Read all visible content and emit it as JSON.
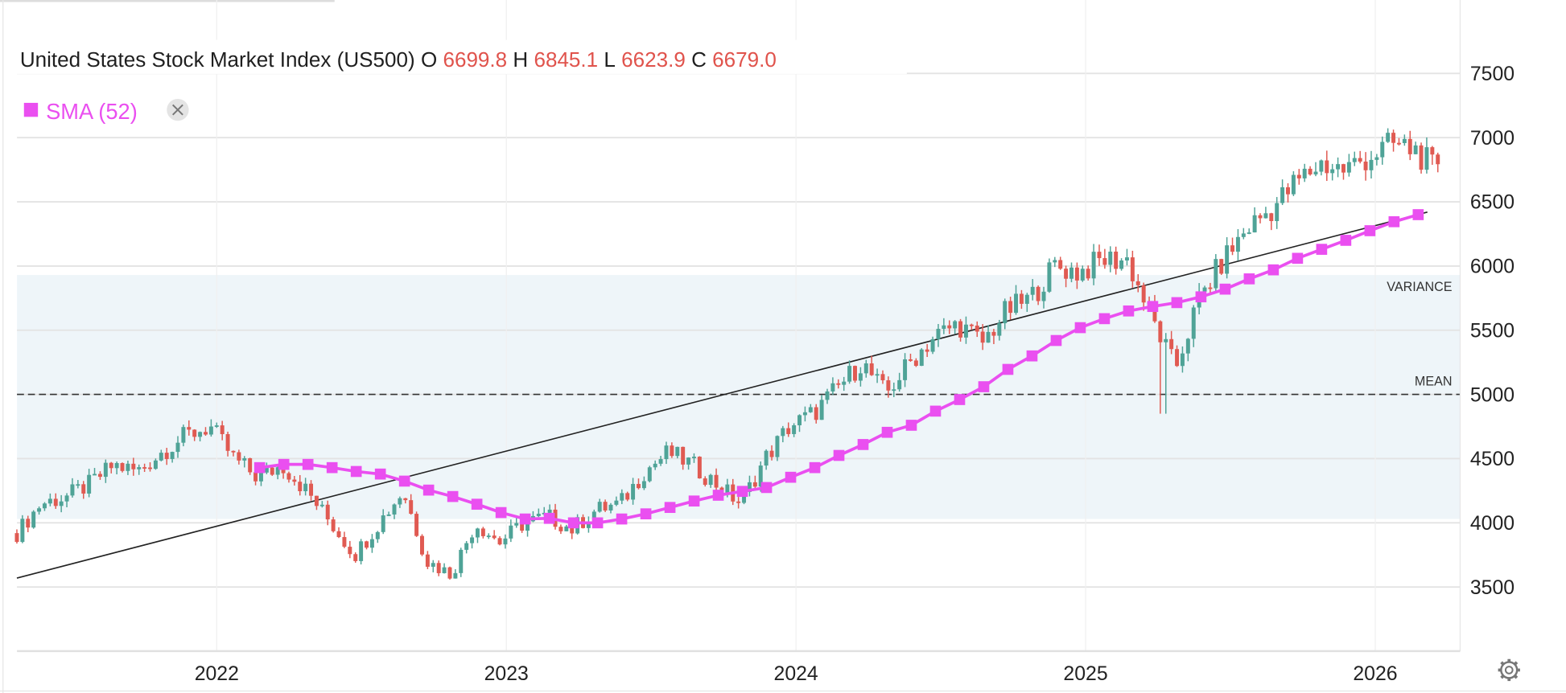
{
  "header": {
    "title": "United States Stock Market Index (US500)",
    "o_label": "O",
    "o_value": "6699.8",
    "h_label": "H",
    "h_value": "6845.1",
    "l_label": "L",
    "l_value": "6623.9",
    "c_label": "C",
    "c_value": "6679.0"
  },
  "legend": {
    "sma_label": "SMA (52)",
    "close_icon": "close-icon"
  },
  "settings_icon": "gear-icon",
  "colors": {
    "up": "#4fa397",
    "down": "#e05a52",
    "sma": "#ea4ff0",
    "band": "#eef5f9",
    "value_text": "#e0534c"
  },
  "chart_data": {
    "type": "candlestick",
    "title": "United States Stock Market Index (US500)",
    "interval": "weekly",
    "y_ticks": [
      "3500",
      "4000",
      "4500",
      "5000",
      "5500",
      "6000",
      "6500",
      "7000",
      "7500"
    ],
    "x_ticks": [
      "2022",
      "2023",
      "2024",
      "2025",
      "2026"
    ],
    "ylim": [
      3100,
      7900
    ],
    "xlim": [
      2021.31,
      2026.3
    ],
    "monthly_closes_start": "2021-04",
    "monthly_closes": [
      3920,
      4150,
      4200,
      4300,
      4450,
      4400,
      4550,
      4680,
      4750,
      4500,
      4350,
      4450,
      4250,
      4000,
      3750,
      4000,
      4250,
      3700,
      3600,
      4000,
      3850,
      4000,
      4050,
      3950,
      4100,
      4150,
      4400,
      4550,
      4450,
      4300,
      4150,
      4500,
      4750,
      4850,
      5050,
      5250,
      5000,
      5250,
      5450,
      5550,
      5400,
      5650,
      5750,
      6000,
      5950,
      6050,
      6050,
      5600,
      5200,
      5750,
      6050,
      6300,
      6450,
      6650,
      6800,
      6750,
      6850,
      6950,
      6900,
      6680
    ],
    "sma": {
      "name": "SMA (52)",
      "start": "2022-02",
      "step": "monthly",
      "values": [
        4430,
        4455,
        4455,
        4430,
        4400,
        4380,
        4325,
        4255,
        4205,
        4145,
        4080,
        4030,
        4035,
        4000,
        4000,
        4030,
        4070,
        4120,
        4170,
        4215,
        4245,
        4275,
        4355,
        4430,
        4525,
        4610,
        4705,
        4760,
        4870,
        4960,
        5060,
        5195,
        5300,
        5420,
        5520,
        5590,
        5650,
        5685,
        5715,
        5760,
        5820,
        5900,
        5970,
        6060,
        6130,
        6200,
        6275,
        6345,
        6400
      ]
    },
    "trendline": {
      "start": [
        2021.31,
        3570
      ],
      "end": [
        2026.18,
        6420
      ]
    },
    "mean": {
      "label": "MEAN",
      "value": 5000
    },
    "variance": {
      "label": "VARIANCE",
      "upper": 5930,
      "lower": 4030
    }
  }
}
